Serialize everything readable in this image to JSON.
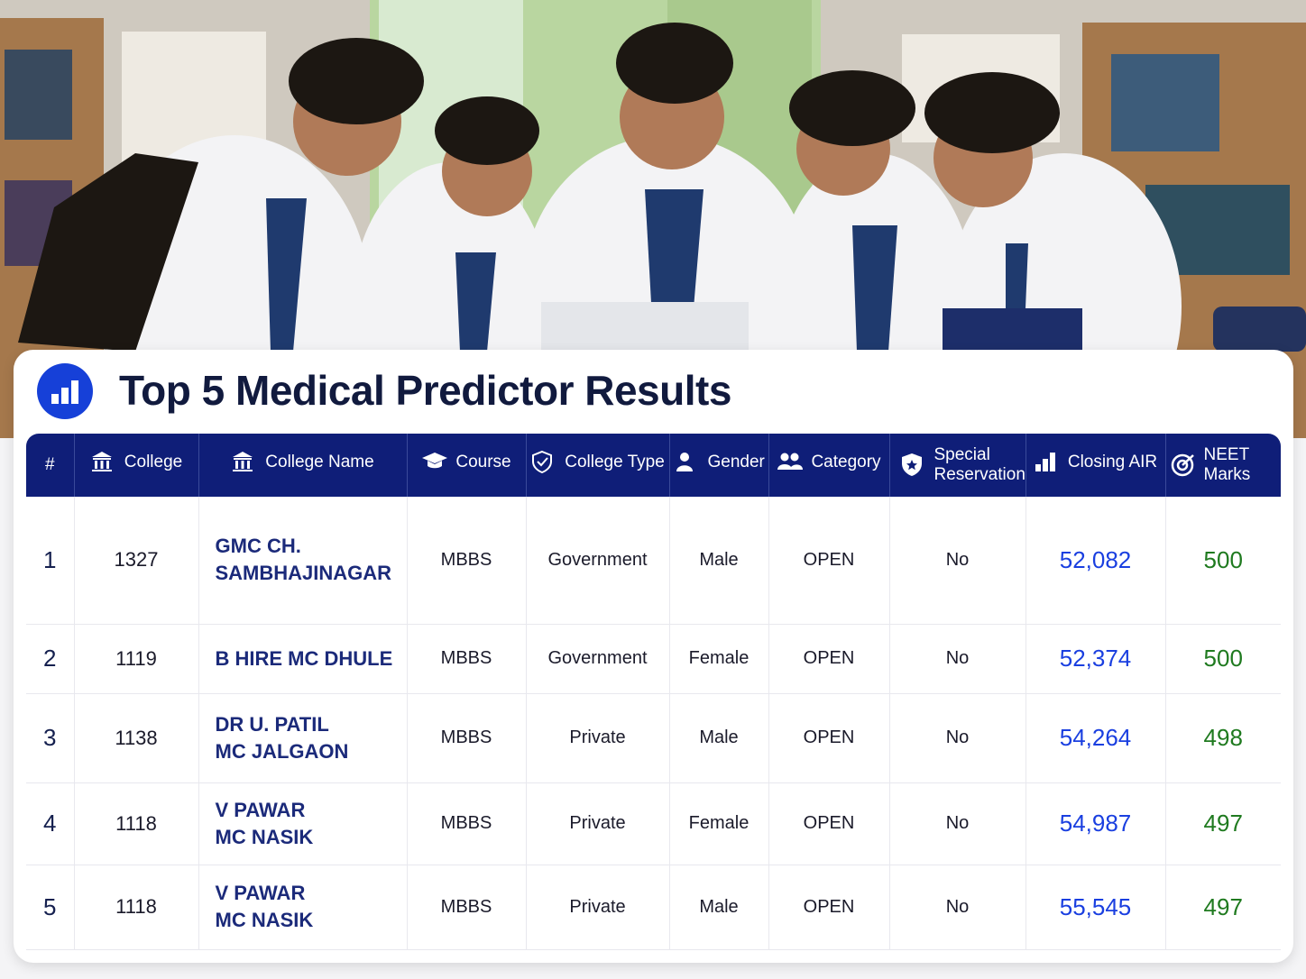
{
  "header": {
    "title": "Top 5 Medical Predictor Results"
  },
  "table": {
    "columns": [
      "#",
      "College",
      "College Name",
      "Course",
      "College Type",
      "Gender",
      "Category",
      "Special Reservation",
      "Closing AIR",
      "NEET Marks"
    ],
    "rows": [
      [
        "1",
        "1327",
        [
          "GMC CH.",
          "SAMBHAJINAGAR"
        ],
        "MBBS",
        "Government",
        "Male",
        "OPEN",
        "No",
        "52,082",
        "500"
      ],
      [
        "2",
        "1119",
        [
          "B HIRE MC DHULE"
        ],
        "MBBS",
        "Government",
        "Female",
        "OPEN",
        "No",
        "52,374",
        "500"
      ],
      [
        "3",
        "1138",
        [
          "DR U. PATIL",
          "MC JALGAON"
        ],
        "MBBS",
        "Private",
        "Male",
        "OPEN",
        "No",
        "54,264",
        "498"
      ],
      [
        "4",
        "1118",
        [
          "V PAWAR",
          "MC NASIK"
        ],
        "MBBS",
        "Private",
        "Female",
        "OPEN",
        "No",
        "54,987",
        "497"
      ],
      [
        "5",
        "1118",
        [
          "V PAWAR",
          "MC NASIK"
        ],
        "MBBS",
        "Private",
        "Male",
        "OPEN",
        "No",
        "55,545",
        "497"
      ]
    ]
  }
}
